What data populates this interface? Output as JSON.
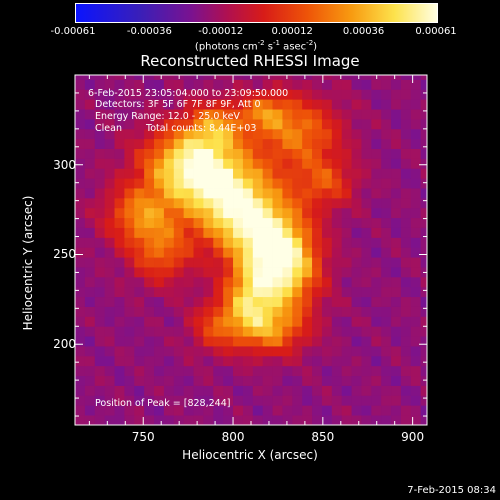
{
  "chart_data": {
    "type": "heatmap",
    "title": "Reconstructed RHESSI Image",
    "xlabel": "Heliocentric X (arcsec)",
    "ylabel": "Heliocentric Y (arcsec)",
    "xlim": [
      712,
      908
    ],
    "ylim": [
      155,
      350
    ],
    "xticks": [
      "750",
      "800",
      "850",
      "900"
    ],
    "xtick_values": [
      750,
      800,
      850,
      900
    ],
    "yticks": [
      "200",
      "250",
      "300"
    ],
    "ytick_values": [
      200,
      250,
      300
    ],
    "colorbar": {
      "ticks": [
        "-0.00061",
        "-0.00036",
        "-0.00012",
        "0.00012",
        "0.00036",
        "0.00061"
      ],
      "tick_values": [
        -0.00061,
        -0.00036,
        -0.00012,
        0.00012,
        0.00036,
        0.00061
      ],
      "range": [
        -0.00061,
        0.00061
      ],
      "unit": "(photons cm",
      "unit_exp1": "-2",
      "unit_mid1": " s",
      "unit_exp2": "-1",
      "unit_mid2": " asec",
      "unit_exp3": "-2",
      "unit_end": ")",
      "colors": [
        "#0a14ff",
        "#3a1fb8",
        "#7a1290",
        "#b01050",
        "#d81c18",
        "#ee5408",
        "#f89a10",
        "#fde24c",
        "#ffffe6"
      ]
    },
    "annotations": {
      "time_range": "6-Feb-2015 23:05:04.000 to 23:09:50.000",
      "detectors": "Detectors: 3F 5F 6F 7F 8F 9F, Att 0",
      "energy": "Energy Range: 12.0 - 25.0 keV",
      "algorithm": "Clean",
      "total_counts": "Total counts: 8.44E+03",
      "peak": "Position of Peak = [828,244]"
    },
    "peak": [
      828,
      244
    ],
    "emission_sources": [
      {
        "x": 828,
        "y": 244,
        "sx": 14,
        "sy": 18,
        "amp": 1.0
      },
      {
        "x": 808,
        "y": 268,
        "sx": 18,
        "sy": 16,
        "amp": 0.75
      },
      {
        "x": 792,
        "y": 290,
        "sx": 20,
        "sy": 16,
        "amp": 0.7
      },
      {
        "x": 772,
        "y": 302,
        "sx": 18,
        "sy": 14,
        "amp": 0.65
      },
      {
        "x": 748,
        "y": 272,
        "sx": 14,
        "sy": 12,
        "amp": 0.55
      },
      {
        "x": 760,
        "y": 250,
        "sx": 12,
        "sy": 12,
        "amp": 0.45
      },
      {
        "x": 808,
        "y": 225,
        "sx": 10,
        "sy": 14,
        "amp": 0.6
      },
      {
        "x": 822,
        "y": 208,
        "sx": 14,
        "sy": 10,
        "amp": 0.5
      },
      {
        "x": 790,
        "y": 210,
        "sx": 10,
        "sy": 10,
        "amp": 0.4
      },
      {
        "x": 838,
        "y": 318,
        "sx": 16,
        "sy": 14,
        "amp": 0.55
      },
      {
        "x": 852,
        "y": 290,
        "sx": 12,
        "sy": 10,
        "amp": 0.4
      },
      {
        "x": 818,
        "y": 330,
        "sx": 10,
        "sy": 8,
        "amp": 0.45
      },
      {
        "x": 790,
        "y": 322,
        "sx": 12,
        "sy": 10,
        "amp": 0.5
      }
    ]
  },
  "timestamp": "7-Feb-2015 08:34"
}
